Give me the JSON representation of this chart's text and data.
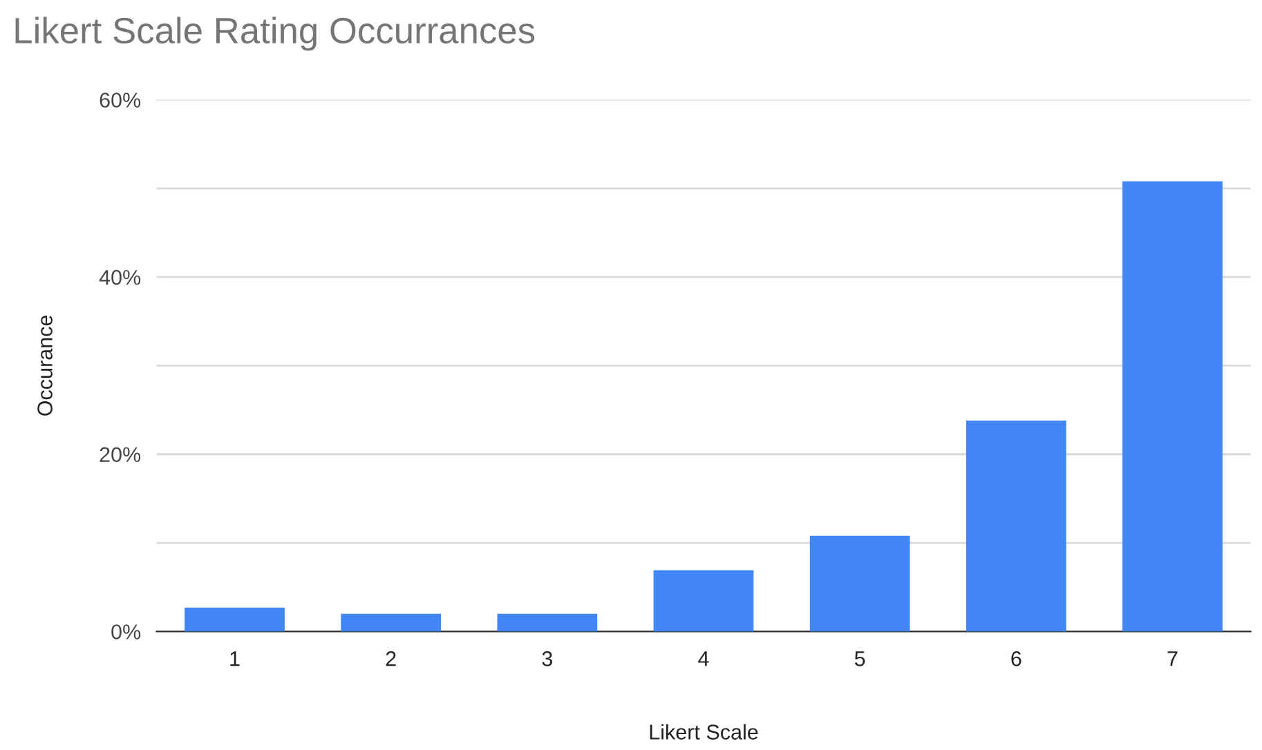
{
  "chart_data": {
    "type": "bar",
    "title": "Likert Scale Rating Occurrances",
    "xlabel": "Likert Scale",
    "ylabel": "Occurance",
    "categories": [
      "1",
      "2",
      "3",
      "4",
      "5",
      "6",
      "7"
    ],
    "values": [
      2.7,
      2.0,
      2.0,
      6.9,
      10.8,
      23.8,
      50.8
    ],
    "color": "#4285f4",
    "ylim": [
      0,
      60
    ],
    "yticks": [
      {
        "value": 0,
        "label": "0%"
      },
      {
        "value": 10,
        "label": null
      },
      {
        "value": 20,
        "label": "20%"
      },
      {
        "value": 30,
        "label": null
      },
      {
        "value": 40,
        "label": "40%"
      },
      {
        "value": 50,
        "label": null
      },
      {
        "value": 60,
        "label": "60%"
      }
    ],
    "grid": "y",
    "legend": false
  }
}
